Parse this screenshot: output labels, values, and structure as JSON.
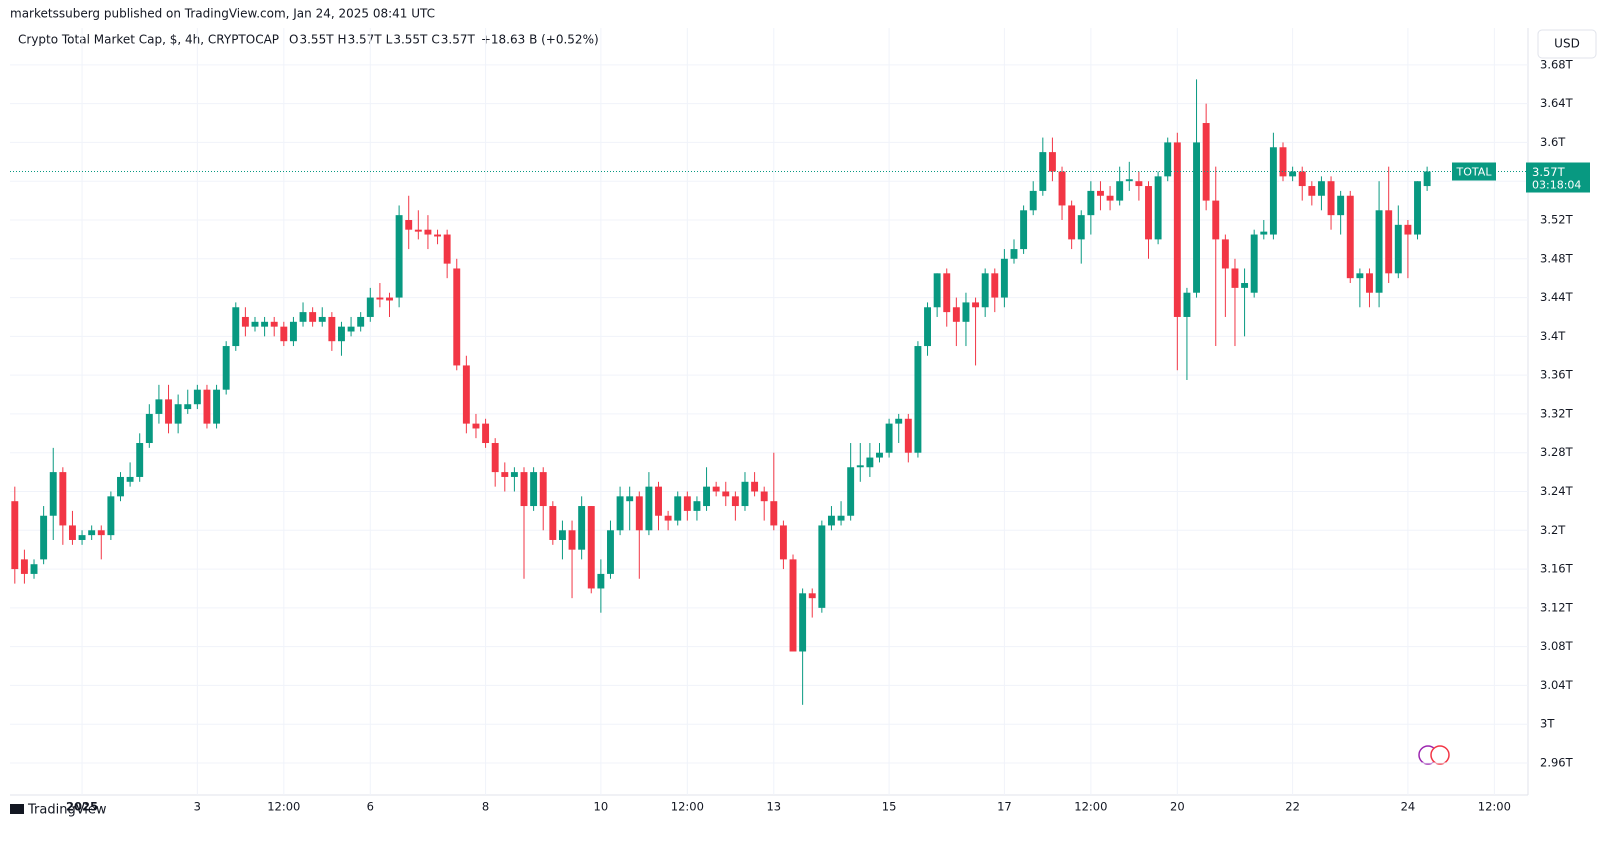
{
  "header": {
    "publisher": "marketssuberg published on TradingView.com, Jan 24, 2025 08:41 UTC",
    "footer": "TradingView",
    "currency": "USD"
  },
  "legend": {
    "symbol": "Crypto Total Market Cap, $, 4h, CRYPTOCAP",
    "ohlc": [
      {
        "key": "O",
        "value": "3.55T"
      },
      {
        "key": "H",
        "value": "3.57T"
      },
      {
        "key": "L",
        "value": "3.55T"
      },
      {
        "key": "C",
        "value": "3.57T"
      }
    ],
    "change": "+18.63 B (+0.52%)"
  },
  "chart_data": {
    "type": "candlestick",
    "up_color": "#089981",
    "down_color": "#f23645",
    "grid": true,
    "xlim": [
      -0.5,
      157.5
    ],
    "xticks": [
      {
        "value": 7,
        "label": "2025"
      },
      {
        "value": 19,
        "label": "3"
      },
      {
        "value": 28,
        "label": "12:00"
      },
      {
        "value": 37,
        "label": "6"
      },
      {
        "value": 49,
        "label": "8"
      },
      {
        "value": 61,
        "label": "10"
      },
      {
        "value": 70,
        "label": "12:00"
      },
      {
        "value": 79,
        "label": "13"
      },
      {
        "value": 91,
        "label": "15"
      },
      {
        "value": 103,
        "label": "17"
      },
      {
        "value": 112,
        "label": "12:00"
      },
      {
        "value": 121,
        "label": "20"
      },
      {
        "value": 133,
        "label": "22"
      },
      {
        "value": 145,
        "label": "24"
      },
      {
        "value": 154,
        "label": "12:00"
      }
    ],
    "ylim": [
      2.927,
      3.718
    ],
    "yticks": [
      {
        "value": 2.96,
        "label": "2.96T"
      },
      {
        "value": 3,
        "label": "3T"
      },
      {
        "value": 3.04,
        "label": "3.04T"
      },
      {
        "value": 3.08,
        "label": "3.08T"
      },
      {
        "value": 3.12,
        "label": "3.12T"
      },
      {
        "value": 3.16,
        "label": "3.16T"
      },
      {
        "value": 3.2,
        "label": "3.2T"
      },
      {
        "value": 3.24,
        "label": "3.24T"
      },
      {
        "value": 3.28,
        "label": "3.28T"
      },
      {
        "value": 3.32,
        "label": "3.32T"
      },
      {
        "value": 3.36,
        "label": "3.36T"
      },
      {
        "value": 3.4,
        "label": "3.4T"
      },
      {
        "value": 3.44,
        "label": "3.44T"
      },
      {
        "value": 3.48,
        "label": "3.48T"
      },
      {
        "value": 3.52,
        "label": "3.52T"
      },
      {
        "value": 3.56,
        "label": "3.56T"
      },
      {
        "value": 3.6,
        "label": "3.6T"
      },
      {
        "value": 3.64,
        "label": "3.64T"
      },
      {
        "value": 3.68,
        "label": "3.68T"
      }
    ],
    "last_price": {
      "name": "TOTAL",
      "value": 3.57,
      "label": "3.57T",
      "countdown": "03:18:04"
    },
    "open": [
      3.23,
      3.17,
      3.155,
      3.17,
      3.215,
      3.26,
      3.205,
      3.19,
      3.195,
      3.2,
      3.195,
      3.235,
      3.25,
      3.255,
      3.29,
      3.32,
      3.335,
      3.31,
      3.325,
      3.33,
      3.345,
      3.31,
      3.345,
      3.39,
      3.42,
      3.41,
      3.41,
      3.415,
      3.41,
      3.395,
      3.415,
      3.425,
      3.415,
      3.42,
      3.395,
      3.405,
      3.41,
      3.42,
      3.44,
      3.44,
      3.44,
      3.52,
      3.51,
      3.51,
      3.505,
      3.505,
      3.47,
      3.37,
      3.31,
      3.31,
      3.29,
      3.26,
      3.255,
      3.26,
      3.225,
      3.26,
      3.225,
      3.19,
      3.2,
      3.18,
      3.225,
      3.14,
      3.155,
      3.2,
      3.23,
      3.235,
      3.2,
      3.245,
      3.215,
      3.21,
      3.235,
      3.22,
      3.225,
      3.245,
      3.24,
      3.235,
      3.225,
      3.25,
      3.24,
      3.23,
      3.205,
      3.17,
      3.075,
      3.135,
      3.12,
      3.205,
      3.21,
      3.215,
      3.265,
      3.265,
      3.275,
      3.28,
      3.31,
      3.315,
      3.28,
      3.39,
      3.43,
      3.465,
      3.43,
      3.415,
      3.435,
      3.43,
      3.465,
      3.44,
      3.48,
      3.49,
      3.53,
      3.55,
      3.59,
      3.57,
      3.535,
      3.5,
      3.525,
      3.55,
      3.545,
      3.54,
      3.56,
      3.56,
      3.555,
      3.5,
      3.565,
      3.6,
      3.42,
      3.445,
      3.62,
      3.54,
      3.5,
      3.47,
      3.45,
      3.445,
      3.505,
      3.505,
      3.595,
      3.565,
      3.57,
      3.555,
      3.545,
      3.56,
      3.525,
      3.545,
      3.46,
      3.465,
      3.445,
      3.53,
      3.465,
      3.515,
      3.505,
      3.555
    ],
    "high": [
      3.245,
      3.18,
      3.17,
      3.225,
      3.285,
      3.265,
      3.22,
      3.2,
      3.205,
      3.205,
      3.24,
      3.26,
      3.27,
      3.3,
      3.33,
      3.35,
      3.35,
      3.34,
      3.345,
      3.35,
      3.35,
      3.35,
      3.395,
      3.435,
      3.43,
      3.42,
      3.42,
      3.42,
      3.415,
      3.42,
      3.435,
      3.43,
      3.43,
      3.425,
      3.415,
      3.42,
      3.425,
      3.45,
      3.455,
      3.445,
      3.535,
      3.545,
      3.53,
      3.525,
      3.51,
      3.51,
      3.48,
      3.38,
      3.32,
      3.315,
      3.295,
      3.27,
      3.265,
      3.265,
      3.265,
      3.265,
      3.23,
      3.21,
      3.21,
      3.235,
      3.225,
      3.17,
      3.21,
      3.245,
      3.245,
      3.24,
      3.26,
      3.25,
      3.22,
      3.24,
      3.24,
      3.235,
      3.265,
      3.25,
      3.25,
      3.24,
      3.26,
      3.26,
      3.245,
      3.28,
      3.21,
      3.175,
      3.14,
      3.14,
      3.21,
      3.225,
      3.23,
      3.29,
      3.29,
      3.29,
      3.29,
      3.315,
      3.32,
      3.32,
      3.395,
      3.435,
      3.465,
      3.47,
      3.44,
      3.445,
      3.44,
      3.47,
      3.47,
      3.49,
      3.5,
      3.535,
      3.56,
      3.605,
      3.605,
      3.575,
      3.54,
      3.53,
      3.56,
      3.56,
      3.555,
      3.575,
      3.58,
      3.57,
      3.56,
      3.57,
      3.605,
      3.61,
      3.45,
      3.665,
      3.64,
      3.575,
      3.505,
      3.48,
      3.47,
      3.51,
      3.52,
      3.61,
      3.6,
      3.575,
      3.575,
      3.56,
      3.565,
      3.565,
      3.55,
      3.55,
      3.47,
      3.47,
      3.56,
      3.575,
      3.535,
      3.52,
      3.56,
      3.575
    ],
    "low": [
      3.145,
      3.145,
      3.15,
      3.165,
      3.19,
      3.185,
      3.185,
      3.185,
      3.19,
      3.17,
      3.19,
      3.23,
      3.245,
      3.25,
      3.285,
      3.31,
      3.3,
      3.3,
      3.32,
      3.325,
      3.305,
      3.305,
      3.34,
      3.385,
      3.4,
      3.405,
      3.4,
      3.4,
      3.39,
      3.39,
      3.41,
      3.41,
      3.41,
      3.385,
      3.38,
      3.4,
      3.405,
      3.415,
      3.43,
      3.42,
      3.43,
      3.49,
      3.5,
      3.49,
      3.495,
      3.46,
      3.365,
      3.3,
      3.295,
      3.285,
      3.245,
      3.24,
      3.24,
      3.15,
      3.22,
      3.2,
      3.185,
      3.17,
      3.13,
      3.17,
      3.135,
      3.115,
      3.15,
      3.195,
      3.2,
      3.15,
      3.195,
      3.2,
      3.2,
      3.205,
      3.21,
      3.21,
      3.22,
      3.235,
      3.225,
      3.21,
      3.22,
      3.235,
      3.21,
      3.2,
      3.16,
      3.075,
      3.02,
      3.11,
      3.115,
      3.2,
      3.205,
      3.21,
      3.25,
      3.255,
      3.27,
      3.275,
      3.29,
      3.27,
      3.275,
      3.38,
      3.42,
      3.41,
      3.39,
      3.39,
      3.37,
      3.42,
      3.425,
      3.43,
      3.475,
      3.485,
      3.525,
      3.545,
      3.56,
      3.52,
      3.49,
      3.475,
      3.505,
      3.53,
      3.53,
      3.535,
      3.55,
      3.54,
      3.48,
      3.495,
      3.56,
      3.365,
      3.355,
      3.44,
      3.53,
      3.39,
      3.42,
      3.39,
      3.4,
      3.44,
      3.5,
      3.5,
      3.56,
      3.56,
      3.54,
      3.535,
      3.53,
      3.51,
      3.505,
      3.455,
      3.43,
      3.43,
      3.43,
      3.455,
      3.46,
      3.46,
      3.5,
      3.55
    ],
    "close": [
      3.16,
      3.155,
      3.165,
      3.215,
      3.26,
      3.205,
      3.19,
      3.195,
      3.2,
      3.195,
      3.235,
      3.255,
      3.255,
      3.29,
      3.32,
      3.335,
      3.31,
      3.33,
      3.33,
      3.345,
      3.31,
      3.345,
      3.39,
      3.43,
      3.41,
      3.415,
      3.415,
      3.41,
      3.395,
      3.415,
      3.425,
      3.415,
      3.42,
      3.395,
      3.41,
      3.41,
      3.42,
      3.44,
      3.438,
      3.437,
      3.525,
      3.51,
      3.508,
      3.505,
      3.503,
      3.475,
      3.37,
      3.31,
      3.305,
      3.29,
      3.26,
      3.255,
      3.26,
      3.225,
      3.26,
      3.225,
      3.19,
      3.2,
      3.18,
      3.225,
      3.14,
      3.155,
      3.2,
      3.235,
      3.235,
      3.2,
      3.245,
      3.215,
      3.21,
      3.235,
      3.22,
      3.23,
      3.245,
      3.24,
      3.235,
      3.225,
      3.25,
      3.24,
      3.23,
      3.205,
      3.17,
      3.075,
      3.135,
      3.13,
      3.205,
      3.215,
      3.215,
      3.265,
      3.267,
      3.275,
      3.28,
      3.31,
      3.315,
      3.28,
      3.39,
      3.43,
      3.465,
      3.425,
      3.415,
      3.435,
      3.43,
      3.465,
      3.44,
      3.48,
      3.49,
      3.53,
      3.55,
      3.59,
      3.57,
      3.535,
      3.5,
      3.525,
      3.55,
      3.545,
      3.54,
      3.56,
      3.562,
      3.555,
      3.5,
      3.565,
      3.6,
      3.42,
      3.445,
      3.6,
      3.54,
      3.5,
      3.47,
      3.45,
      3.455,
      3.505,
      3.508,
      3.595,
      3.565,
      3.57,
      3.555,
      3.545,
      3.56,
      3.525,
      3.545,
      3.46,
      3.465,
      3.445,
      3.53,
      3.465,
      3.515,
      3.505,
      3.56,
      3.57
    ]
  }
}
